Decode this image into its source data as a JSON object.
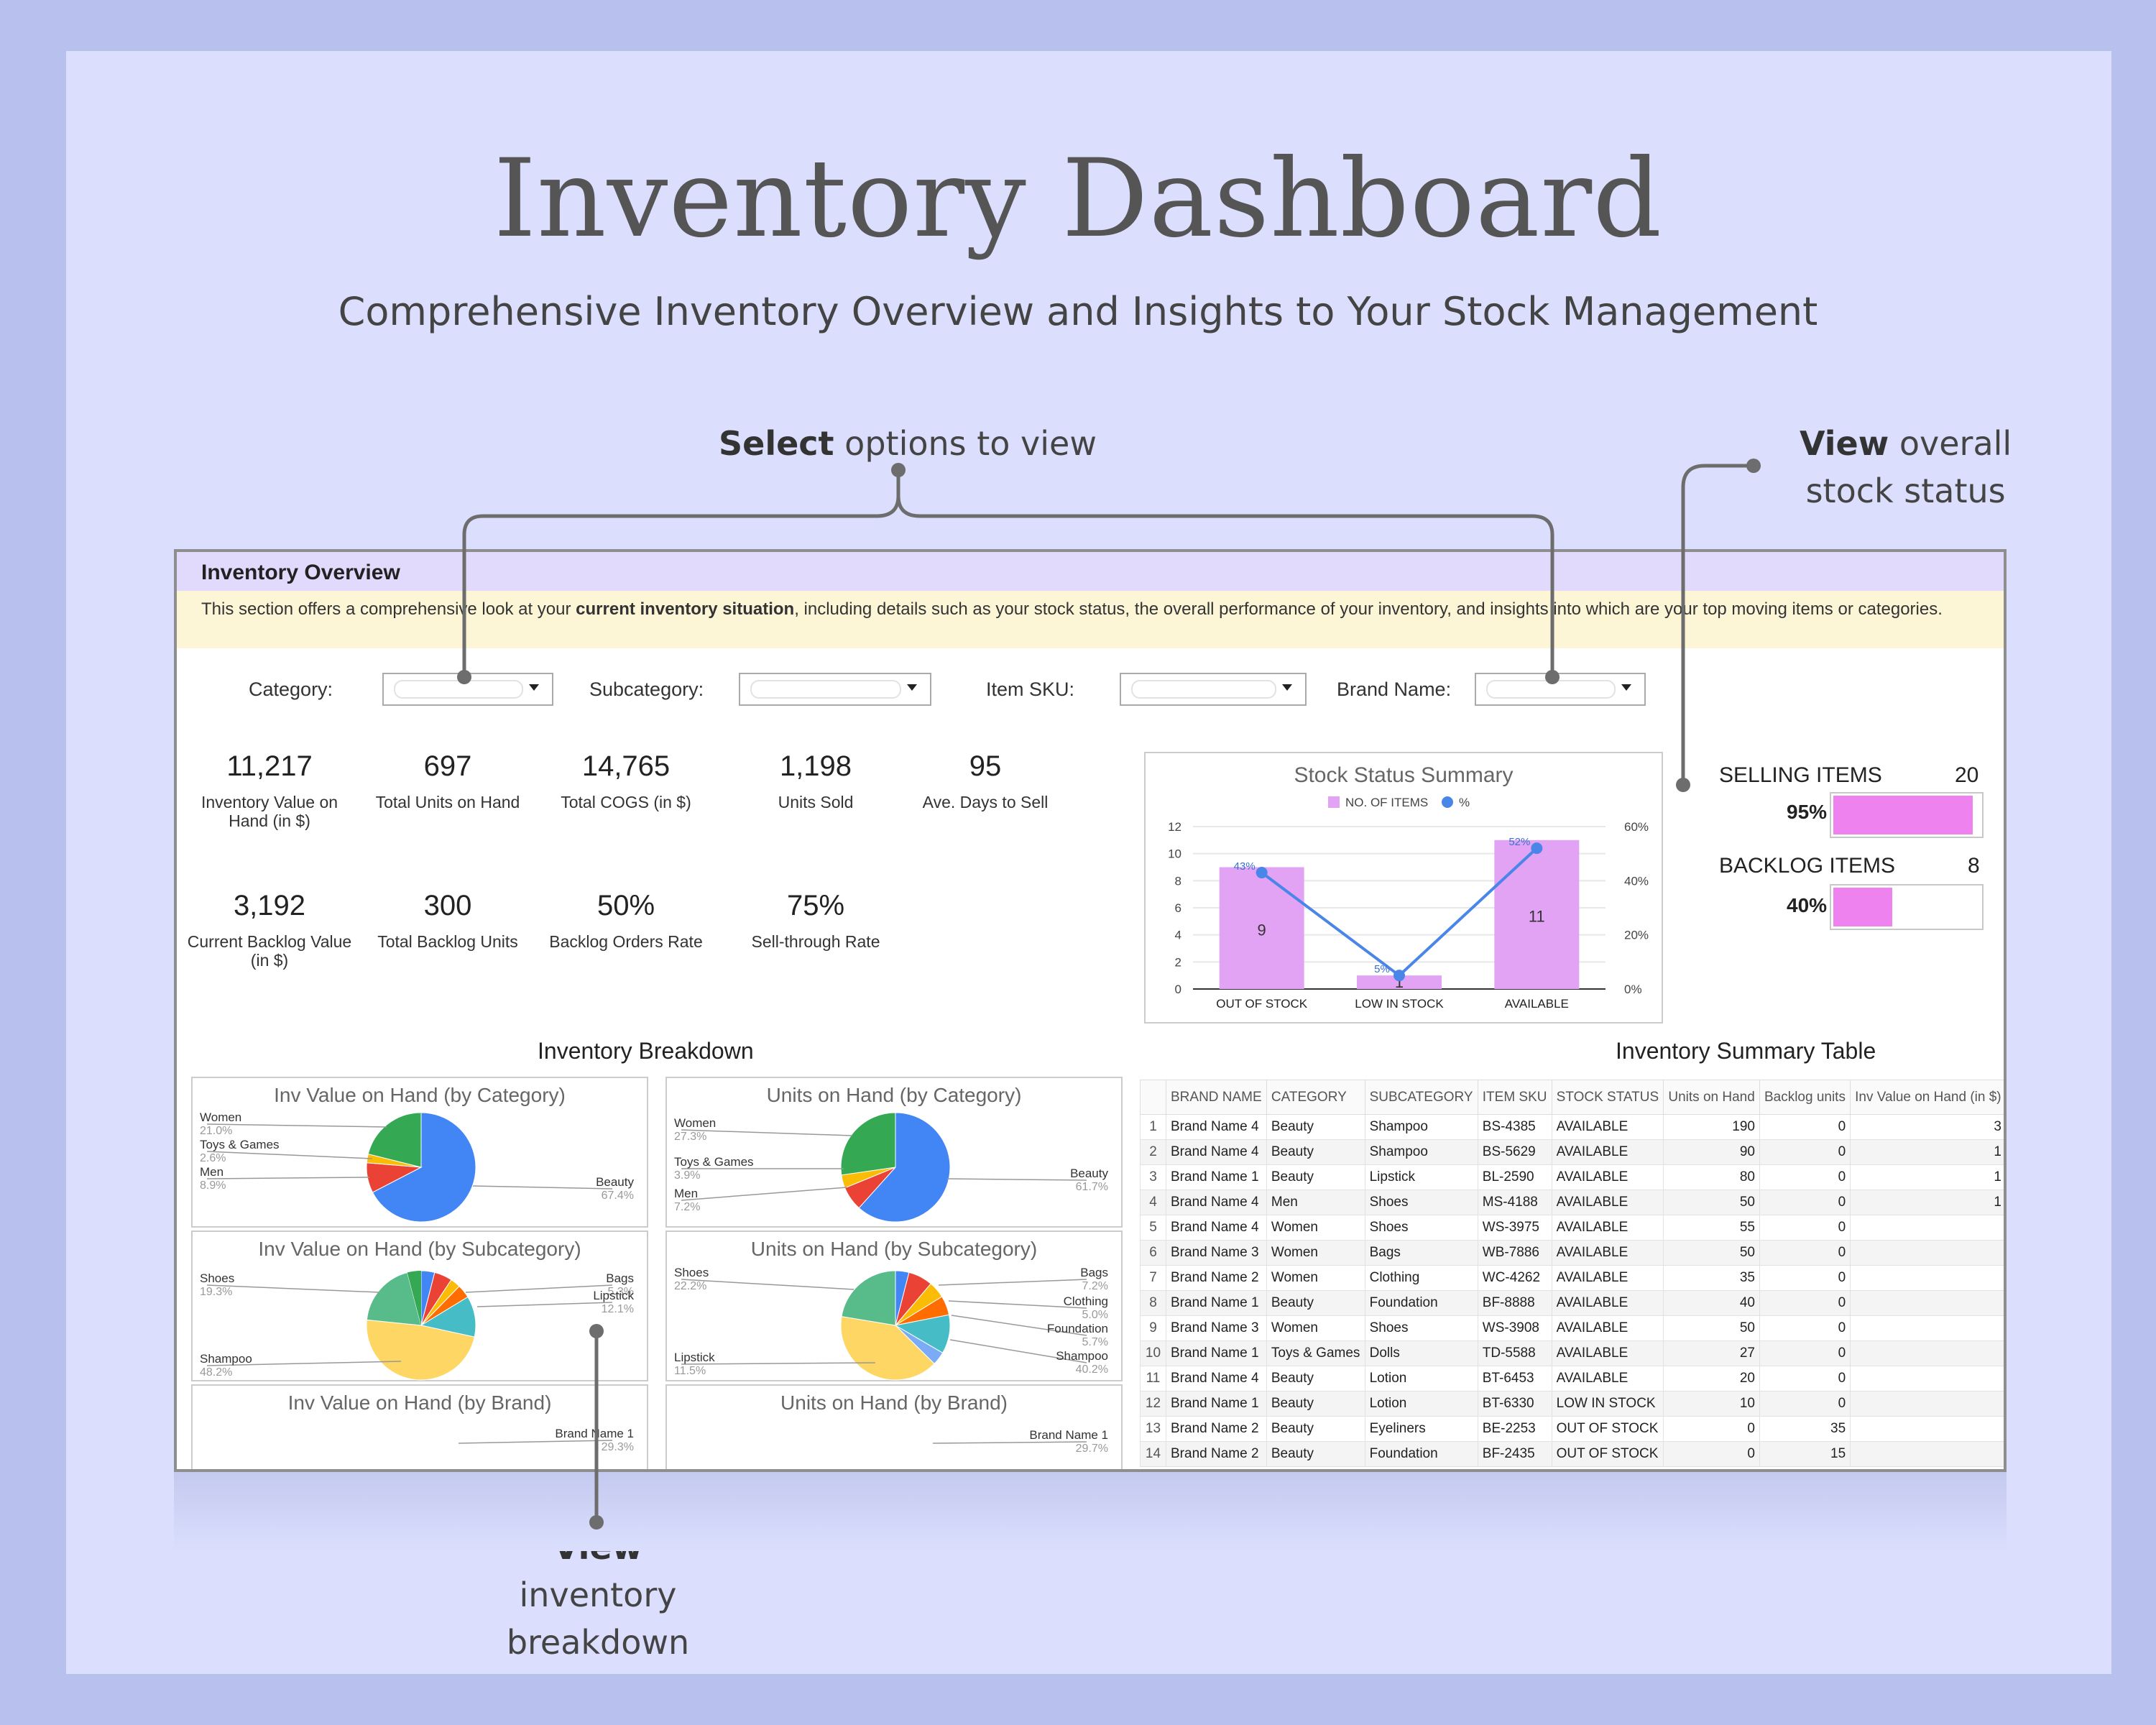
{
  "header": {
    "title": "Inventory Dashboard",
    "subtitle": "Comprehensive Inventory Overview and Insights to Your Stock Management"
  },
  "callouts": {
    "select": {
      "bold": "Select",
      "rest": " options to view"
    },
    "status": {
      "bold": "View",
      "rest1": " overall",
      "line2": "stock status"
    },
    "breakdown": {
      "bold": "View",
      "rest1": " inventory",
      "line2": "breakdown"
    }
  },
  "sheet": {
    "heading": "Inventory Overview",
    "desc_pre": "This section offers a comprehensive look at your ",
    "desc_bold": "current inventory situation",
    "desc_post": ", including details such as your stock status, the overall performance of your inventory, and insights into which are your top moving items or categories."
  },
  "filters": [
    {
      "label": "Category:"
    },
    {
      "label": "Subcategory:"
    },
    {
      "label": "Item SKU:"
    },
    {
      "label": "Brand Name:"
    }
  ],
  "kpis": [
    {
      "value": "11,217",
      "label": "Inventory Value on Hand (in $)"
    },
    {
      "value": "697",
      "label": "Total Units on Hand"
    },
    {
      "value": "14,765",
      "label": "Total COGS (in $)"
    },
    {
      "value": "1,198",
      "label": "Units Sold"
    },
    {
      "value": "95",
      "label": "Ave. Days to Sell"
    },
    {
      "value": "3,192",
      "label": "Current Backlog Value (in $)"
    },
    {
      "value": "300",
      "label": "Total Backlog Units"
    },
    {
      "value": "50%",
      "label": "Backlog Orders Rate"
    },
    {
      "value": "75%",
      "label": "Sell-through Rate"
    }
  ],
  "stock_chart": {
    "title": "Stock Status Summary",
    "legend": [
      "NO. OF ITEMS",
      "%"
    ],
    "colors": {
      "bar": "#e2a3f4",
      "line": "#4a86e8"
    }
  },
  "chart_data": [
    {
      "type": "bar",
      "title": "Stock Status Summary",
      "categories": [
        "OUT OF STOCK",
        "LOW IN STOCK",
        "AVAILABLE"
      ],
      "series": [
        {
          "name": "NO. OF ITEMS",
          "values": [
            9,
            1,
            11
          ],
          "type": "bar",
          "axis": "left"
        },
        {
          "name": "%",
          "values": [
            43,
            5,
            52
          ],
          "type": "line",
          "axis": "right"
        }
      ],
      "data_labels_bar": [
        "9",
        "1",
        "11"
      ],
      "data_labels_line": [
        "43%",
        "5%",
        "52%"
      ],
      "ylim": [
        0,
        12
      ],
      "yticks": [
        "0",
        "2",
        "4",
        "6",
        "8",
        "10",
        "12"
      ],
      "y2lim": [
        0,
        60
      ],
      "y2ticks": [
        "0%",
        "20%",
        "40%",
        "60%"
      ],
      "legend": "top"
    },
    {
      "type": "pie",
      "title": "Inv Value on Hand (by Category)",
      "labels": [
        "Beauty",
        "Women",
        "Toys & Games",
        "Men"
      ],
      "values": [
        67.4,
        21.0,
        2.6,
        8.9
      ],
      "label_text": [
        "67.4%",
        "21.0%",
        "2.6%",
        "8.9%"
      ]
    },
    {
      "type": "pie",
      "title": "Units on Hand (by Category)",
      "labels": [
        "Beauty",
        "Women",
        "Toys & Games",
        "Men"
      ],
      "values": [
        61.7,
        27.3,
        3.9,
        7.2
      ],
      "label_text": [
        "61.7%",
        "27.3%",
        "3.9%",
        "7.2%"
      ]
    },
    {
      "type": "pie",
      "title": "Inv Value on Hand (by Subcategory)",
      "labels": [
        "Shampoo",
        "Lipstick",
        "Bags",
        "Shoes"
      ],
      "values": [
        48.2,
        12.1,
        5.3,
        19.3
      ],
      "label_text": [
        "48.2%",
        "12.1%",
        "5.3%",
        "19.3%"
      ]
    },
    {
      "type": "pie",
      "title": "Units on Hand (by Subcategory)",
      "labels": [
        "Shampoo",
        "Lipstick",
        "Foundation",
        "Clothing",
        "Bags",
        "Shoes"
      ],
      "values": [
        40.2,
        11.5,
        5.7,
        5.0,
        7.2,
        22.2
      ],
      "label_text": [
        "40.2%",
        "11.5%",
        "5.7%",
        "5.0%",
        "7.2%",
        "22.2%"
      ]
    },
    {
      "type": "pie",
      "title": "Inv Value on Hand (by Brand)",
      "labels": [
        "Brand Name 1"
      ],
      "values": [
        29.3
      ],
      "label_text": [
        "29.3%"
      ]
    },
    {
      "type": "pie",
      "title": "Units on Hand (by Brand)",
      "labels": [
        "Brand Name 1"
      ],
      "values": [
        29.7
      ],
      "label_text": [
        "29.7%"
      ]
    }
  ],
  "selling": {
    "label": "SELLING ITEMS",
    "count": "20",
    "pct": "95%",
    "fill": 0.95,
    "color": "#ee82ee"
  },
  "backlog": {
    "label": "BACKLOG ITEMS",
    "count": "8",
    "pct": "40%",
    "fill": 0.4,
    "color": "#ee82ee"
  },
  "breakdown": {
    "title": "Inventory Breakdown"
  },
  "summary": {
    "title": "Inventory Summary Table",
    "columns": [
      "",
      "BRAND NAME",
      "CATEGORY",
      "SUBCATEGORY",
      "ITEM SKU",
      "STOCK STATUS",
      "Units on Hand",
      "Backlog units",
      "Inv Value on Hand (in $)"
    ],
    "rows": [
      [
        "1",
        "Brand Name 4",
        "Beauty",
        "Shampoo",
        "BS-4385",
        "AVAILABLE",
        "190",
        "0",
        "3"
      ],
      [
        "2",
        "Brand Name 4",
        "Beauty",
        "Shampoo",
        "BS-5629",
        "AVAILABLE",
        "90",
        "0",
        "1"
      ],
      [
        "3",
        "Brand Name 1",
        "Beauty",
        "Lipstick",
        "BL-2590",
        "AVAILABLE",
        "80",
        "0",
        "1"
      ],
      [
        "4",
        "Brand Name 4",
        "Men",
        "Shoes",
        "MS-4188",
        "AVAILABLE",
        "50",
        "0",
        "1"
      ],
      [
        "5",
        "Brand Name 4",
        "Women",
        "Shoes",
        "WS-3975",
        "AVAILABLE",
        "55",
        "0",
        ""
      ],
      [
        "6",
        "Brand Name 3",
        "Women",
        "Bags",
        "WB-7886",
        "AVAILABLE",
        "50",
        "0",
        ""
      ],
      [
        "7",
        "Brand Name 2",
        "Women",
        "Clothing",
        "WC-4262",
        "AVAILABLE",
        "35",
        "0",
        ""
      ],
      [
        "8",
        "Brand Name 1",
        "Beauty",
        "Foundation",
        "BF-8888",
        "AVAILABLE",
        "40",
        "0",
        ""
      ],
      [
        "9",
        "Brand Name 3",
        "Women",
        "Shoes",
        "WS-3908",
        "AVAILABLE",
        "50",
        "0",
        ""
      ],
      [
        "10",
        "Brand Name 1",
        "Toys & Games",
        "Dolls",
        "TD-5588",
        "AVAILABLE",
        "27",
        "0",
        ""
      ],
      [
        "11",
        "Brand Name 4",
        "Beauty",
        "Lotion",
        "BT-6453",
        "AVAILABLE",
        "20",
        "0",
        ""
      ],
      [
        "12",
        "Brand Name 1",
        "Beauty",
        "Lotion",
        "BT-6330",
        "LOW IN STOCK",
        "10",
        "0",
        ""
      ],
      [
        "13",
        "Brand Name 2",
        "Beauty",
        "Eyeliners",
        "BE-2253",
        "OUT OF STOCK",
        "0",
        "35",
        ""
      ],
      [
        "14",
        "Brand Name 2",
        "Beauty",
        "Foundation",
        "BF-2435",
        "OUT OF STOCK",
        "0",
        "15",
        ""
      ]
    ]
  }
}
